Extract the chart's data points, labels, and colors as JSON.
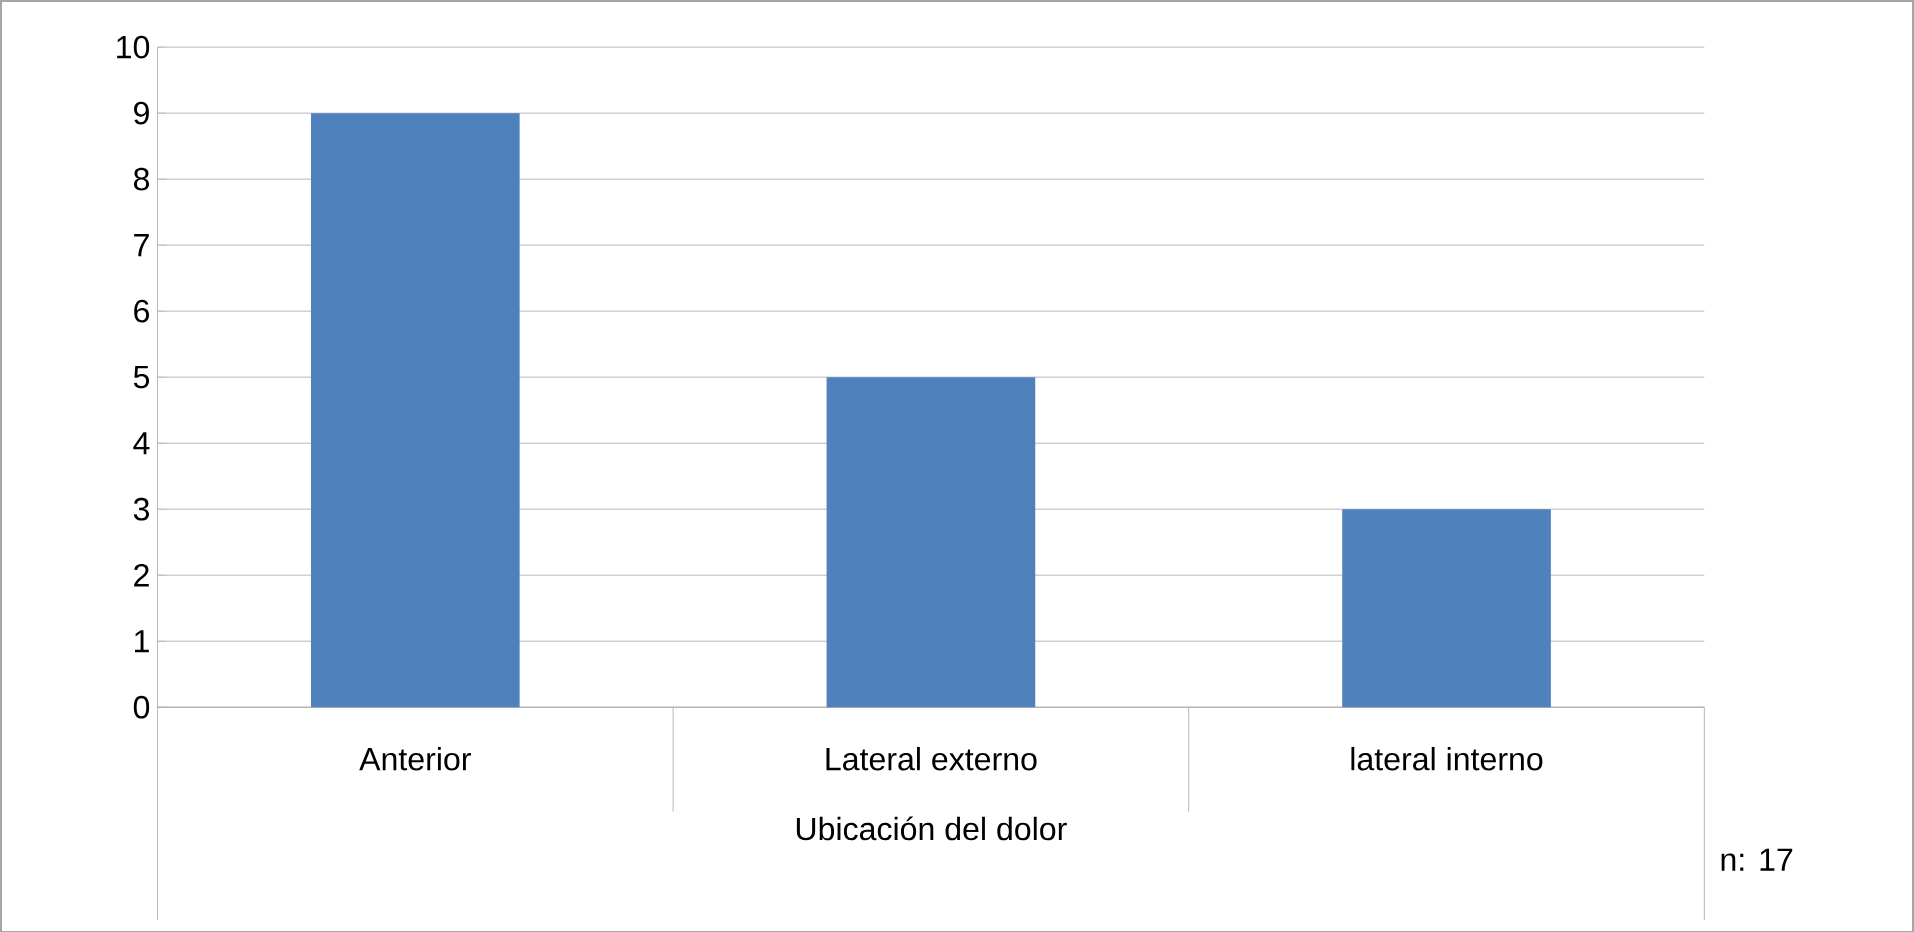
{
  "chart_data": {
    "type": "bar",
    "categories": [
      "Anterior",
      "Lateral externo",
      "lateral interno"
    ],
    "values": [
      9,
      5,
      3
    ],
    "color": "#4f81bd",
    "xlabel": "Ubicación del dolor",
    "ylim": [
      0,
      10
    ],
    "yticks": [
      0,
      1,
      2,
      3,
      4,
      5,
      6,
      7,
      8,
      9,
      10
    ],
    "grid": "y",
    "annotations": [
      "n: 17"
    ]
  }
}
